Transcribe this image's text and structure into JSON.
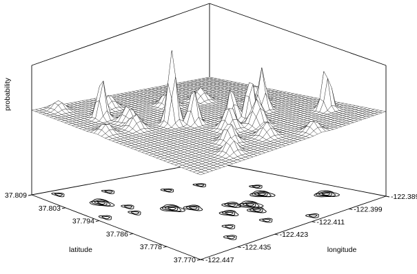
{
  "chart_data": {
    "type": "surface3d",
    "zlabel": "probability",
    "xlabel": "latitude",
    "ylabel": "longitude",
    "latitude_ticks": [
      "37.809",
      "37.803",
      "37.794",
      "37.786",
      "37.778",
      "37.770"
    ],
    "longitude_ticks": [
      "-122.447",
      "-122.435",
      "-122.423",
      "-122.411",
      "-122.399",
      "-122.389"
    ],
    "latitude_range": [
      37.77,
      37.809
    ],
    "longitude_range": [
      -122.447,
      -122.389
    ],
    "surface_style": "wireframe mesh",
    "floor_projection": "contour",
    "peaks": [
      {
        "latitude": 37.8,
        "longitude": -122.437,
        "height": 0.55
      },
      {
        "latitude": 37.791,
        "longitude": -122.427,
        "height": 1.0
      },
      {
        "latitude": 37.789,
        "longitude": -122.423,
        "height": 0.48
      },
      {
        "latitude": 37.786,
        "longitude": -122.415,
        "height": 0.45
      },
      {
        "latitude": 37.784,
        "longitude": -122.412,
        "height": 0.6
      },
      {
        "latitude": 37.781,
        "longitude": -122.414,
        "height": 0.35
      },
      {
        "latitude": 37.787,
        "longitude": -122.404,
        "height": 0.55
      },
      {
        "latitude": 37.779,
        "longitude": -122.395,
        "height": 0.58
      },
      {
        "latitude": 37.796,
        "longitude": -122.434,
        "height": 0.22
      },
      {
        "latitude": 37.793,
        "longitude": -122.436,
        "height": 0.18
      },
      {
        "latitude": 37.804,
        "longitude": -122.429,
        "height": 0.16
      },
      {
        "latitude": 37.778,
        "longitude": -122.427,
        "height": 0.25
      },
      {
        "latitude": 37.774,
        "longitude": -122.432,
        "height": 0.2
      },
      {
        "latitude": 37.783,
        "longitude": -122.42,
        "height": 0.3
      },
      {
        "latitude": 37.799,
        "longitude": -122.417,
        "height": 0.2
      },
      {
        "latitude": 37.791,
        "longitude": -122.4,
        "height": 0.22
      },
      {
        "latitude": 37.798,
        "longitude": -122.408,
        "height": 0.17
      },
      {
        "latitude": 37.807,
        "longitude": -122.441,
        "height": 0.12
      },
      {
        "latitude": 37.776,
        "longitude": -122.418,
        "height": 0.18
      },
      {
        "latitude": 37.772,
        "longitude": -122.409,
        "height": 0.14
      },
      {
        "latitude": 37.794,
        "longitude": -122.444,
        "height": 0.13
      }
    ]
  }
}
